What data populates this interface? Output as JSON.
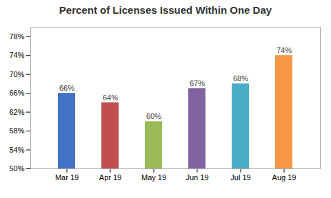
{
  "chart_data": {
    "type": "bar",
    "title": "Percent of Licenses Issued Within One Day",
    "categories": [
      "Mar 19",
      "Apr 19",
      "May 19",
      "Jun 19",
      "Jul 19",
      "Aug 19"
    ],
    "values": [
      0.66,
      0.64,
      0.6,
      0.67,
      0.68,
      0.74
    ],
    "value_labels": [
      "66%",
      "64%",
      "60%",
      "67%",
      "68%",
      "74%"
    ],
    "colors": [
      "#4472C4",
      "#C0504D",
      "#9BBB59",
      "#8064A2",
      "#4BACC6",
      "#F79646"
    ],
    "ylim": [
      0.5,
      0.8
    ],
    "yticks": [
      {
        "value": 0.5,
        "label": "50%"
      },
      {
        "value": 0.54,
        "label": "54%"
      },
      {
        "value": 0.58,
        "label": "58%"
      },
      {
        "value": 0.62,
        "label": "62%"
      },
      {
        "value": 0.66,
        "label": "66%"
      },
      {
        "value": 0.7,
        "label": "70%"
      },
      {
        "value": 0.74,
        "label": "74%"
      },
      {
        "value": 0.78,
        "label": "78%"
      }
    ],
    "data_labels": true,
    "grid": false
  }
}
